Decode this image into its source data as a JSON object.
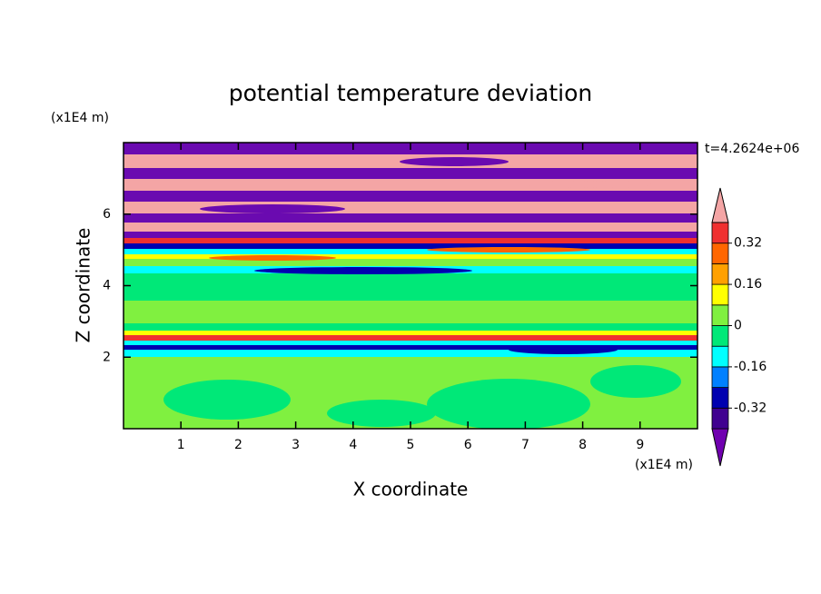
{
  "chart_data": {
    "type": "contour",
    "title": "potential temperature deviation",
    "x_label": "X coordinate",
    "y_label": "Z coordinate",
    "x_unit": "(x1E4 m)",
    "y_unit": "(x1E4 m)",
    "time_label": "t=4.2624e+06",
    "xlim": [
      0,
      10
    ],
    "ylim": [
      0,
      8
    ],
    "xticks": [
      1,
      2,
      3,
      4,
      5,
      6,
      7,
      8,
      9
    ],
    "yticks": [
      2,
      4,
      6
    ],
    "colorbar": {
      "levels": [
        -0.4,
        -0.32,
        -0.24,
        -0.16,
        -0.08,
        0,
        0.08,
        0.16,
        0.24,
        0.32,
        0.4
      ],
      "colors": [
        "#7000b0",
        "#400090",
        "#0000b0",
        "#0080ff",
        "#00ffff",
        "#00e878",
        "#80f040",
        "#ffff00",
        "#ffa000",
        "#ff6600",
        "#f03030",
        "#f4a5a5"
      ],
      "ticks": [
        -0.32,
        -0.16,
        0,
        0.16,
        0.32
      ]
    }
  }
}
